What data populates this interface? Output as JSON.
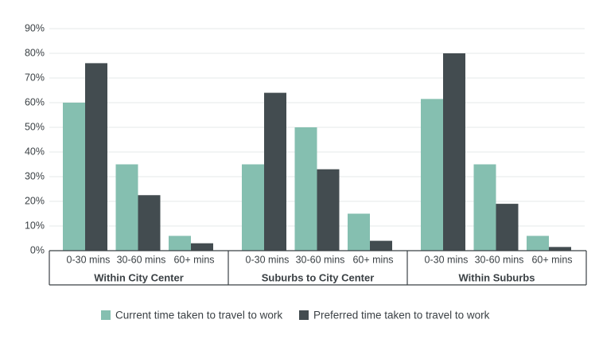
{
  "chart_data": {
    "type": "bar",
    "groups": [
      {
        "name": "Within City Center",
        "categories": [
          "0-30 mins",
          "30-60 mins",
          "60+ mins"
        ]
      },
      {
        "name": "Suburbs to City Center",
        "categories": [
          "0-30 mins",
          "30-60 mins",
          "60+ mins"
        ]
      },
      {
        "name": "Within Suburbs",
        "categories": [
          "0-30 mins",
          "30-60 mins",
          "60+ mins"
        ]
      }
    ],
    "series": [
      {
        "name": "Current time taken to travel to work",
        "color": "#85bfb0",
        "values": [
          60,
          35,
          6,
          35,
          50,
          15,
          61.5,
          35,
          6
        ]
      },
      {
        "name": "Preferred time taken to travel to work",
        "color": "#434c50",
        "values": [
          76,
          22.5,
          3,
          64,
          33,
          4,
          80,
          19,
          1.5
        ]
      }
    ],
    "ylim": [
      0,
      90
    ],
    "yticks": [
      {
        "value": 0,
        "label": "0%"
      },
      {
        "value": 10,
        "label": "10%"
      },
      {
        "value": 20,
        "label": "20%"
      },
      {
        "value": 30,
        "label": "30%"
      },
      {
        "value": 40,
        "label": "40%"
      },
      {
        "value": 50,
        "label": "50%"
      },
      {
        "value": 60,
        "label": "60%"
      },
      {
        "value": 70,
        "label": "70%"
      },
      {
        "value": 80,
        "label": "80%"
      },
      {
        "value": 90,
        "label": "90%"
      }
    ],
    "grid": true
  }
}
